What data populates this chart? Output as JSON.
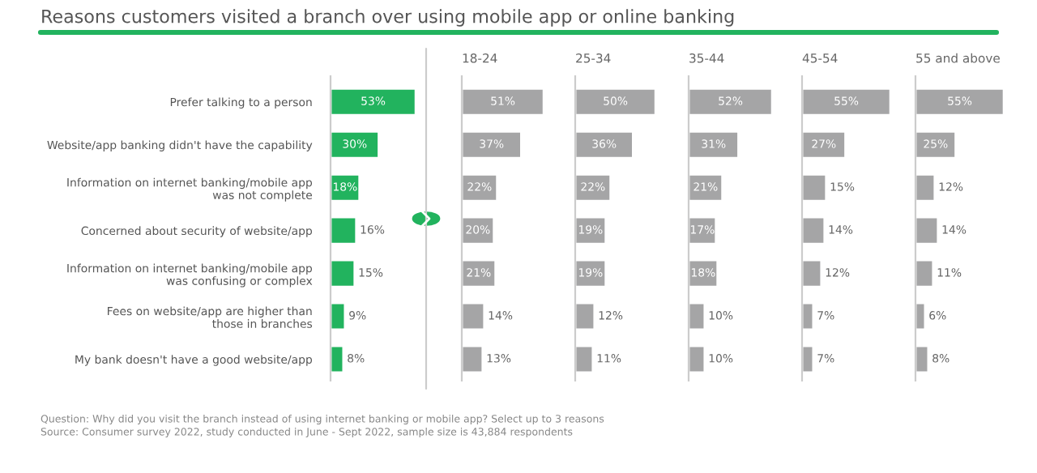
{
  "chart_data": [
    {
      "type": "bar",
      "orientation": "horizontal",
      "title": "Reasons customers visited a branch over using mobile app or online banking",
      "categories": [
        "Prefer talking to a person",
        "Website/app banking didn't have the capability",
        "Information on internet banking/mobile app\nwas not complete",
        "Concerned about security of website/app",
        "Information on internet banking/mobile app\nwas confusing or complex",
        "Fees on website/app are higher than\nthose in branches",
        "My bank doesn't have a good website/app"
      ],
      "series": [
        {
          "color": "#22b35e",
          "values": [
            53,
            30,
            18,
            16,
            15,
            9,
            8
          ],
          "value_labels": [
            "53%",
            "30%",
            "18%",
            "16%",
            "15%",
            "9%",
            "8%"
          ]
        }
      ],
      "tick_labels": "y",
      "annotations": [
        "Question: Why did you visit the branch instead of using internet banking or mobile app? Select up to 3 reasons",
        "Source: Consumer survey 2022, study conducted in June - Sept 2022, sample size is 43,884 respondents"
      ]
    },
    {
      "type": "bar",
      "orientation": "horizontal",
      "title": "18-24",
      "series": [
        {
          "color": "#a5a5a6",
          "values": [
            51,
            37,
            22,
            20,
            21,
            14,
            13
          ],
          "value_labels": [
            "51%",
            "37%",
            "22%",
            "20%",
            "21%",
            "14%",
            "13%"
          ]
        }
      ]
    },
    {
      "type": "bar",
      "orientation": "horizontal",
      "title": "25-34",
      "series": [
        {
          "color": "#a5a5a6",
          "values": [
            50,
            36,
            22,
            19,
            19,
            12,
            11
          ],
          "value_labels": [
            "50%",
            "36%",
            "22%",
            "19%",
            "19%",
            "12%",
            "11%"
          ]
        }
      ]
    },
    {
      "type": "bar",
      "orientation": "horizontal",
      "title": "35-44",
      "series": [
        {
          "color": "#a5a5a6",
          "values": [
            52,
            31,
            21,
            17,
            18,
            10,
            10
          ],
          "value_labels": [
            "52%",
            "31%",
            "21%",
            "17%",
            "18%",
            "10%",
            "10%"
          ]
        }
      ]
    },
    {
      "type": "bar",
      "orientation": "horizontal",
      "title": "45-54",
      "series": [
        {
          "color": "#a5a5a6",
          "values": [
            55,
            27,
            15,
            14,
            12,
            7,
            7
          ],
          "value_labels": [
            "55%",
            "27%",
            "15%",
            "14%",
            "12%",
            "7%",
            "7%"
          ]
        }
      ]
    },
    {
      "type": "bar",
      "orientation": "horizontal",
      "title": "55 and above",
      "series": [
        {
          "color": "#a5a5a6",
          "values": [
            55,
            25,
            12,
            14,
            11,
            6,
            8
          ],
          "value_labels": [
            "55%",
            "25%",
            "12%",
            "14%",
            "11%",
            "6%",
            "8%"
          ]
        }
      ]
    }
  ]
}
